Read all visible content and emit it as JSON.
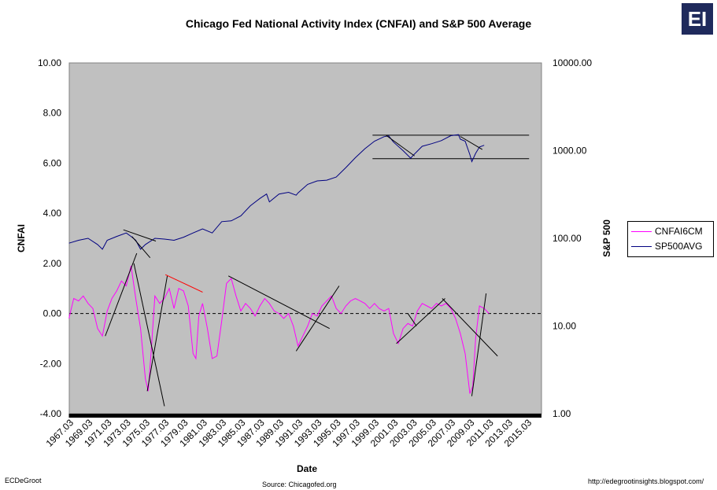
{
  "chart_data": {
    "type": "line",
    "title": "Chicago Fed National Activity Index (CNFAI) and S&P 500 Average",
    "xlabel": "Date",
    "ylabel": "CNFAI",
    "y2label": "S&P 500",
    "x_ticks": [
      "1967.03",
      "1969.03",
      "1971.03",
      "1973.03",
      "1975.03",
      "1977.03",
      "1979.03",
      "1981.03",
      "1983.03",
      "1985.03",
      "1987.03",
      "1989.03",
      "1991.03",
      "1993.03",
      "1995.03",
      "1997.03",
      "1999.03",
      "2001.03",
      "2003.03",
      "2005.03",
      "2007.03",
      "2009.03",
      "2011.03",
      "2013.03",
      "2015.03"
    ],
    "xlim": [
      1967.03,
      2016.5
    ],
    "ylim": [
      -4,
      10
    ],
    "y_ticks": [
      "10.00",
      "8.00",
      "6.00",
      "4.00",
      "2.00",
      "0.00",
      "-2.00",
      "-4.00"
    ],
    "y2_scale": "log",
    "y2lim": [
      1,
      10000
    ],
    "y2_ticks": [
      "10000.00",
      "1000.00",
      "100.00",
      "10.00",
      "1.00"
    ],
    "zero_line": 0,
    "series": [
      {
        "name": "CNFAI6CM",
        "color": "#ff00ff",
        "axis": "left",
        "x": [
          1967.0,
          1967.5,
          1968.0,
          1968.5,
          1969.0,
          1969.5,
          1970.0,
          1970.5,
          1971.0,
          1971.5,
          1972.0,
          1972.5,
          1973.0,
          1973.5,
          1974.0,
          1974.5,
          1975.0,
          1975.3,
          1975.6,
          1976.0,
          1976.5,
          1977.0,
          1977.5,
          1978.0,
          1978.5,
          1979.0,
          1979.5,
          1980.0,
          1980.3,
          1980.6,
          1981.0,
          1981.5,
          1982.0,
          1982.5,
          1983.0,
          1983.5,
          1984.0,
          1984.5,
          1985.0,
          1985.5,
          1986.0,
          1986.5,
          1987.0,
          1987.5,
          1988.0,
          1988.5,
          1989.0,
          1989.5,
          1990.0,
          1990.5,
          1991.0,
          1991.5,
          1992.0,
          1992.5,
          1993.0,
          1993.5,
          1994.0,
          1994.5,
          1995.0,
          1995.5,
          1996.0,
          1996.5,
          1997.0,
          1997.5,
          1998.0,
          1998.5,
          1999.0,
          1999.5,
          2000.0,
          2000.5,
          2001.0,
          2001.5,
          2002.0,
          2002.5,
          2003.0,
          2003.5,
          2004.0,
          2004.5,
          2005.0,
          2005.5,
          2006.0,
          2006.5,
          2007.0,
          2007.5,
          2008.0,
          2008.5,
          2009.0,
          2009.3,
          2009.6,
          2010.0,
          2010.5,
          2011.0
        ],
        "values": [
          -0.2,
          0.6,
          0.5,
          0.7,
          0.4,
          0.2,
          -0.6,
          -0.9,
          0.1,
          0.6,
          0.9,
          1.3,
          1.1,
          1.9,
          0.6,
          -0.6,
          -2.6,
          -3.1,
          -1.6,
          0.7,
          0.4,
          0.6,
          1.0,
          0.2,
          1.0,
          0.9,
          0.3,
          -1.6,
          -1.8,
          -0.1,
          0.4,
          -0.6,
          -1.8,
          -1.7,
          -0.3,
          1.2,
          1.4,
          0.7,
          0.1,
          0.4,
          0.2,
          -0.1,
          0.3,
          0.6,
          0.4,
          0.1,
          0.0,
          -0.2,
          0.0,
          -0.5,
          -1.3,
          -0.9,
          -0.5,
          0.0,
          -0.1,
          0.3,
          0.5,
          0.7,
          0.2,
          0.0,
          0.3,
          0.5,
          0.6,
          0.5,
          0.4,
          0.2,
          0.4,
          0.2,
          0.1,
          0.2,
          -0.8,
          -1.2,
          -0.6,
          -0.4,
          -0.5,
          0.1,
          0.4,
          0.3,
          0.2,
          0.4,
          0.3,
          0.4,
          0.2,
          -0.2,
          -0.8,
          -1.6,
          -3.2,
          -2.9,
          -1.0,
          0.3,
          0.2,
          0.0
        ]
      },
      {
        "name": "SP500AVG",
        "color": "#000080",
        "axis": "right",
        "x": [
          1967.0,
          1968.0,
          1969.0,
          1970.0,
          1970.5,
          1971.0,
          1972.0,
          1973.0,
          1973.5,
          1974.0,
          1974.5,
          1975.0,
          1976.0,
          1977.0,
          1978.0,
          1979.0,
          1980.0,
          1981.0,
          1982.0,
          1983.0,
          1984.0,
          1985.0,
          1986.0,
          1987.0,
          1987.7,
          1988.0,
          1989.0,
          1990.0,
          1990.8,
          1991.0,
          1992.0,
          1993.0,
          1994.0,
          1995.0,
          1996.0,
          1997.0,
          1998.0,
          1999.0,
          2000.0,
          2000.5,
          2001.0,
          2002.0,
          2002.8,
          2003.0,
          2004.0,
          2005.0,
          2006.0,
          2007.0,
          2007.8,
          2008.0,
          2008.5,
          2009.0,
          2009.2,
          2009.6,
          2010.0,
          2010.5
        ],
        "values": [
          88,
          95,
          100,
          85,
          75,
          95,
          105,
          115,
          105,
          95,
          75,
          85,
          100,
          98,
          95,
          103,
          115,
          128,
          115,
          155,
          158,
          180,
          235,
          285,
          320,
          260,
          320,
          335,
          310,
          330,
          412,
          452,
          460,
          500,
          640,
          830,
          1050,
          1280,
          1440,
          1470,
          1250,
          1000,
          820,
          870,
          1120,
          1200,
          1300,
          1480,
          1520,
          1350,
          1280,
          900,
          750,
          930,
          1100,
          1150
        ]
      }
    ],
    "annotations": {
      "trend_lines_color": "#000000",
      "highlight_line_color": "#ff0000",
      "horizontal_bands": [
        1500,
        810
      ]
    },
    "legend_position": "right"
  },
  "source": "Source:  Chicagofed.org",
  "author": "ECDeGroot",
  "url": "http://edegrootinsights.blogspot.com/",
  "logo": "EI"
}
